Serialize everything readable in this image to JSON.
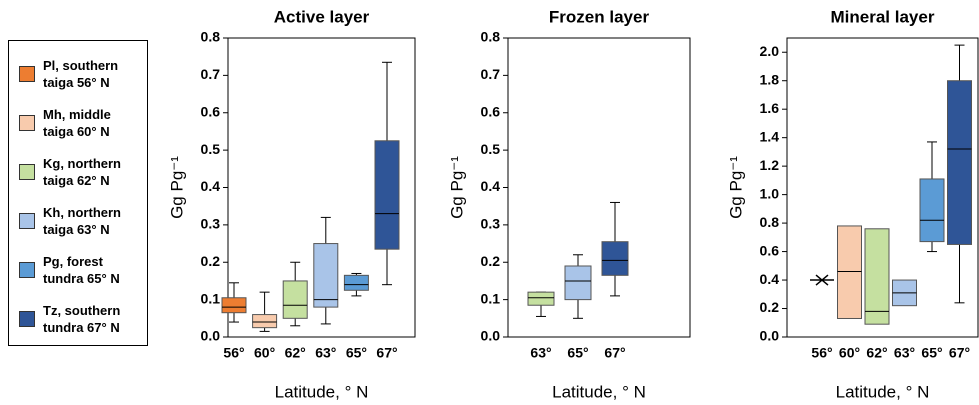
{
  "legend": [
    {
      "name": "Pl, southern taiga 56° N",
      "color": "#ed7d31"
    },
    {
      "name": "Mh, middle taiga 60° N",
      "color": "#f8cbad"
    },
    {
      "name": "Kg, northern taiga 62° N",
      "color": "#c5e0a0"
    },
    {
      "name": "Kh, northern taiga 63° N",
      "color": "#a9c4e8"
    },
    {
      "name": "Pg, forest tundra 65° N",
      "color": "#5b9bd5"
    },
    {
      "name": "Tz, southern tundra 67° N",
      "color": "#2f5597"
    }
  ],
  "chart_data": [
    {
      "type": "box",
      "title": "Active layer",
      "ylabel": "Gg Pg⁻¹",
      "xlabel": "Latitude, ° N",
      "categories": [
        "56°",
        "60°",
        "62°",
        "63°",
        "65°",
        "67°"
      ],
      "colors": [
        "#ed7d31",
        "#f8cbad",
        "#c5e0a0",
        "#a9c4e8",
        "#5b9bd5",
        "#2f5597"
      ],
      "low": [
        0.04,
        0.015,
        0.03,
        0.035,
        0.11,
        0.14
      ],
      "q1": [
        0.065,
        0.025,
        0.05,
        0.08,
        0.125,
        0.235
      ],
      "median": [
        0.08,
        0.04,
        0.085,
        0.1,
        0.14,
        0.33
      ],
      "q3": [
        0.105,
        0.06,
        0.15,
        0.25,
        0.165,
        0.525
      ],
      "high": [
        0.145,
        0.12,
        0.2,
        0.32,
        0.17,
        0.735
      ],
      "ylim": [
        0,
        0.8
      ],
      "yticks": [
        {
          "value": 0,
          "label": "0.0"
        },
        0.1,
        0.2,
        0.3,
        0.4,
        0.5,
        0.6,
        0.7,
        0.8
      ]
    },
    {
      "type": "box",
      "title": "Frozen layer",
      "ylabel": "Gg Pg⁻¹",
      "xlabel": "Latitude, ° N",
      "categories": [
        "63°",
        "65°",
        "67°"
      ],
      "colors": [
        "#c5e0a0",
        "#a9c4e8",
        "#2f5597"
      ],
      "low": [
        0.055,
        0.05,
        0.11
      ],
      "q1": [
        0.085,
        0.1,
        0.165
      ],
      "median": [
        0.105,
        0.15,
        0.205
      ],
      "q3": [
        0.12,
        0.19,
        0.255
      ],
      "high": [
        0.12,
        0.22,
        0.36
      ],
      "ylim": [
        0,
        0.8
      ],
      "yticks": [
        {
          "value": 0,
          "label": "0.0"
        },
        0.1,
        0.2,
        0.3,
        0.4,
        0.5,
        0.6,
        0.7,
        0.8
      ]
    },
    {
      "type": "box",
      "title": "Mineral layer",
      "ylabel": "Gg Pg⁻¹",
      "xlabel": "Latitude, ° N",
      "categories": [
        "56°",
        "60°",
        "62°",
        "63°",
        "65°",
        "67°"
      ],
      "colors": [
        "#ed7d31",
        "#f8cbad",
        "#c5e0a0",
        "#a9c4e8",
        "#5b9bd5",
        "#2f5597"
      ],
      "low": [
        null,
        null,
        null,
        null,
        0.6,
        0.24
      ],
      "q1": [
        null,
        0.13,
        0.09,
        0.22,
        0.67,
        0.65
      ],
      "median": [
        0.4,
        0.46,
        0.18,
        0.31,
        0.82,
        1.32
      ],
      "q3": [
        null,
        0.78,
        0.76,
        0.4,
        1.11,
        1.8
      ],
      "high": [
        null,
        null,
        null,
        null,
        1.37,
        2.05
      ],
      "ylim": [
        0,
        2.1
      ],
      "yticks": [
        {
          "value": 0,
          "label": "0.0"
        },
        0.2,
        0.4,
        0.6,
        0.8,
        {
          "value": 1,
          "label": "1.0"
        },
        1.2,
        1.4,
        1.6,
        1.8,
        {
          "value": 2,
          "label": "2.0"
        }
      ]
    }
  ]
}
